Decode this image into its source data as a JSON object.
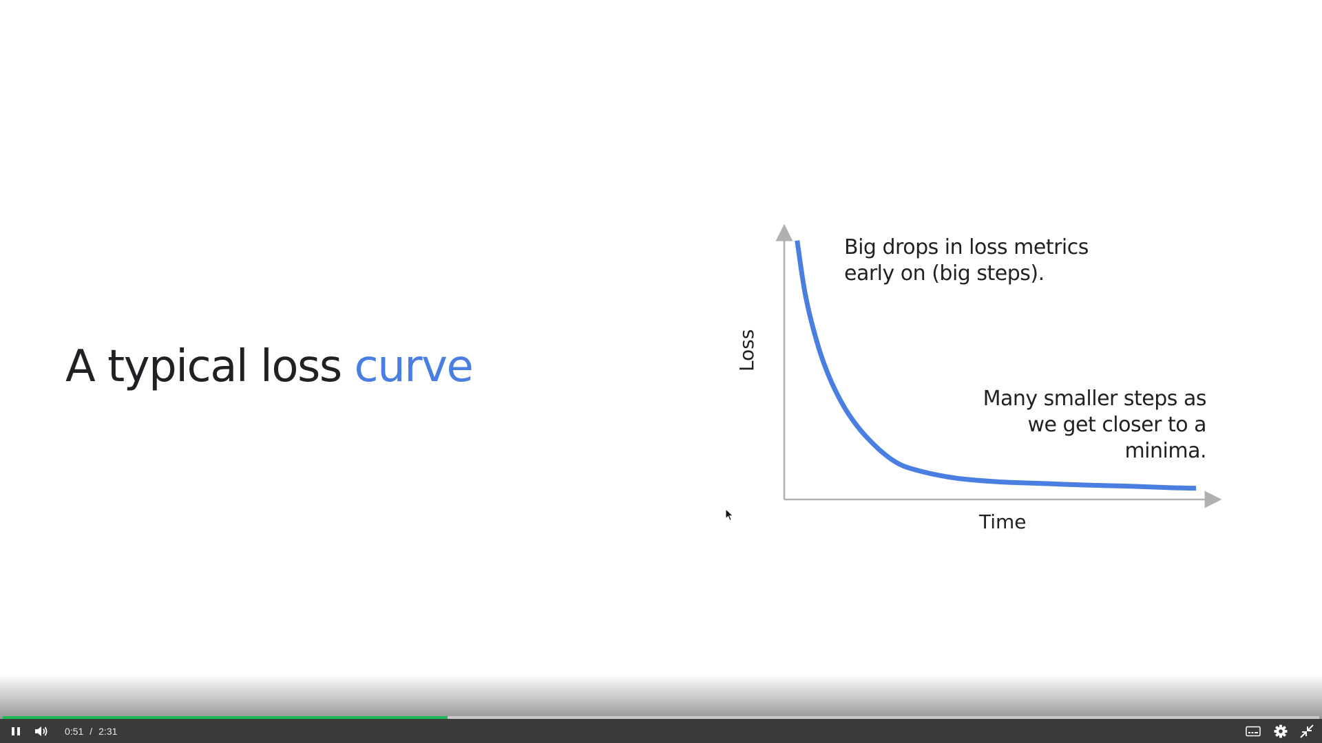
{
  "slide": {
    "title_prefix": "A typical loss ",
    "title_accent": "curve",
    "accent_color": "#4a7ee0",
    "annotation_early": "Big drops in loss metrics early on (big steps).",
    "annotation_late": "Many smaller steps as we get closer to a minima."
  },
  "chart_data": {
    "type": "line",
    "title": "",
    "xlabel": "Time",
    "ylabel": "Loss",
    "xlim": [
      0,
      10
    ],
    "ylim": [
      0,
      10
    ],
    "grid": false,
    "line_color": "#4a7ee0",
    "axis_color": "#b0b0b0",
    "series": [
      {
        "x": [
          0.3,
          0.5,
          0.8,
          1.1,
          1.5,
          2.0,
          2.6,
          3.2,
          4.0,
          5.0,
          6.0,
          7.0,
          8.0,
          9.0,
          9.6
        ],
        "y": [
          9.7,
          7.6,
          5.7,
          4.4,
          3.2,
          2.2,
          1.4,
          1.05,
          0.8,
          0.66,
          0.6,
          0.54,
          0.5,
          0.44,
          0.42
        ]
      }
    ]
  },
  "player": {
    "current_time": "0:51",
    "separator": "/",
    "duration": "2:31",
    "progress_fraction": 0.338,
    "progress_color": "#1db954",
    "icons": {
      "play_pause": "pause-icon",
      "volume": "volume-icon",
      "captions": "captions-icon",
      "settings": "gear-icon",
      "fullscreen": "exit-fullscreen-icon"
    }
  }
}
